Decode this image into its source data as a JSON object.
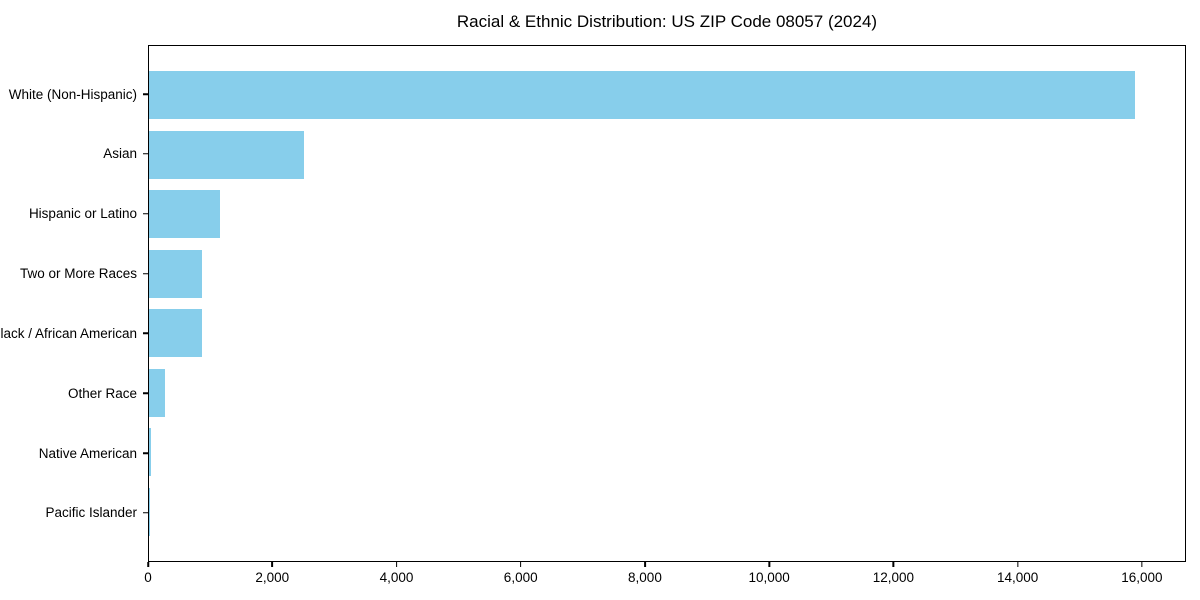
{
  "chart_data": {
    "type": "bar",
    "orientation": "horizontal",
    "title": "Racial & Ethnic Distribution: US ZIP Code 08057 (2024)",
    "xlabel": "",
    "ylabel": "",
    "categories": [
      "White (Non-Hispanic)",
      "Asian",
      "Hispanic or Latino",
      "Two or More Races",
      "Black / African American",
      "Other Race",
      "Native American",
      "Pacific Islander"
    ],
    "values": [
      15900,
      2500,
      1140,
      860,
      850,
      260,
      30,
      5
    ],
    "xlim": [
      0,
      16710
    ],
    "xtick_values": [
      0,
      2000,
      4000,
      6000,
      8000,
      10000,
      12000,
      14000,
      16000
    ],
    "xtick_labels": [
      "0",
      "2,000",
      "4,000",
      "6,000",
      "8,000",
      "10,000",
      "12,000",
      "14,000",
      "16,000"
    ],
    "grid": false,
    "legend": null,
    "bar_color": "#87CEEB",
    "axis_color": "#000000",
    "text_color": "#000000",
    "background_color": "#ffffff"
  }
}
